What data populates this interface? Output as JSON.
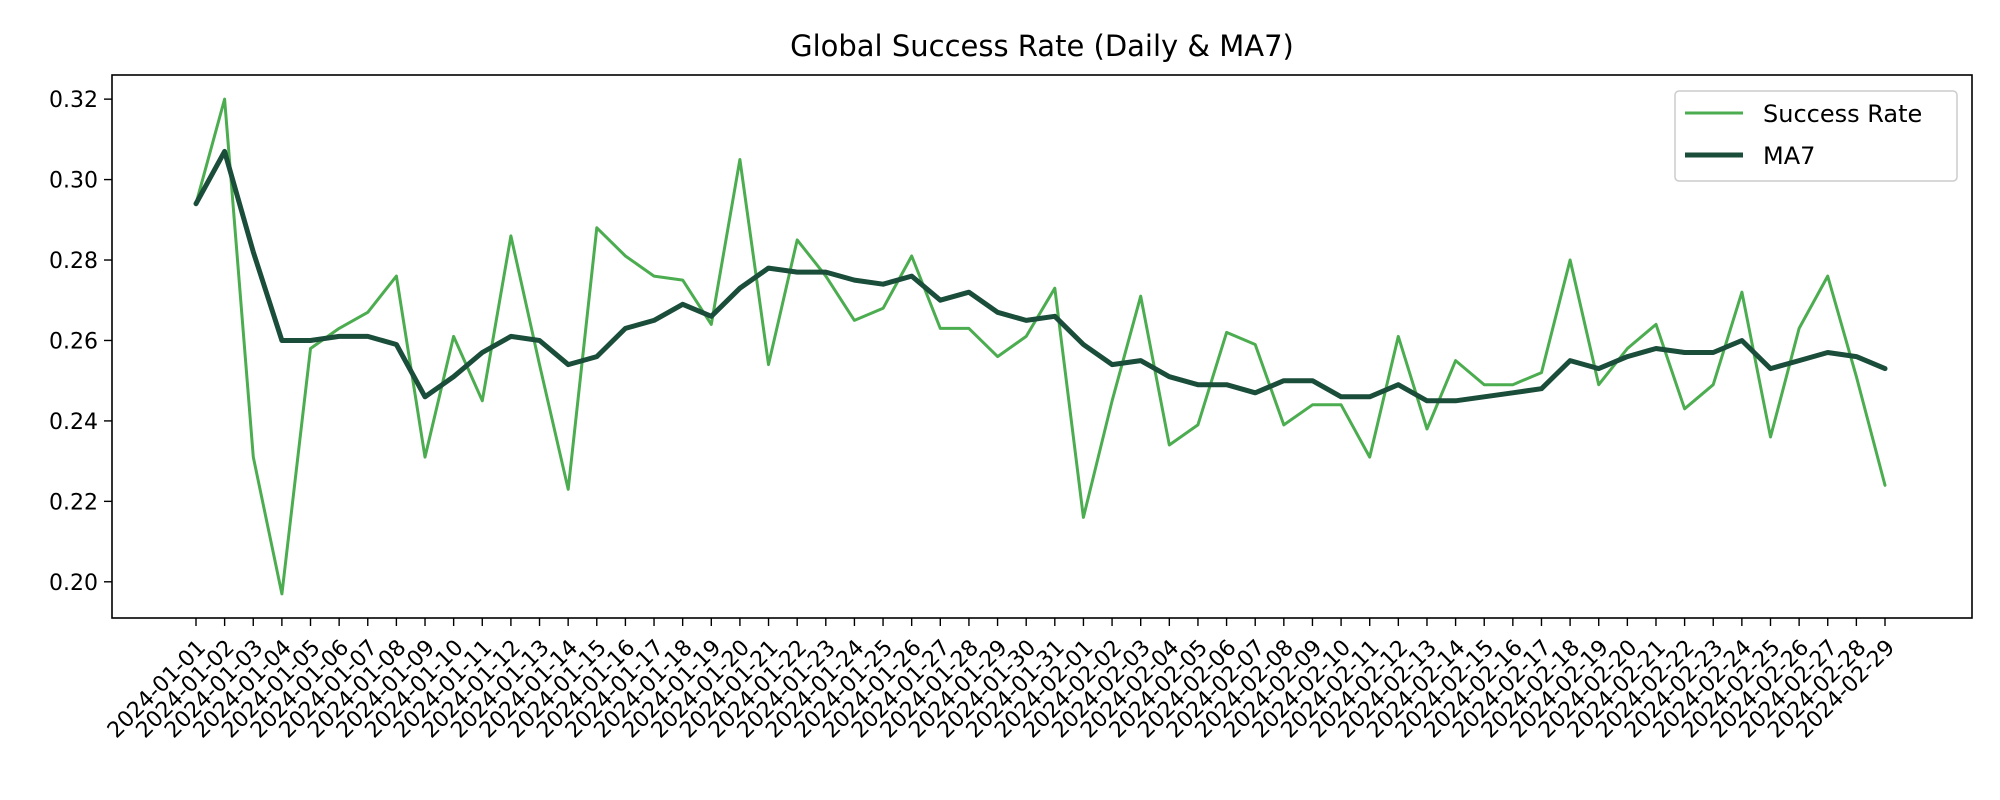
{
  "chart_data": {
    "type": "line",
    "title": "Global Success Rate (Daily & MA7)",
    "xlabel": "",
    "ylabel": "",
    "x": [
      "2024-01-01",
      "2024-01-02",
      "2024-01-03",
      "2024-01-04",
      "2024-01-05",
      "2024-01-06",
      "2024-01-07",
      "2024-01-08",
      "2024-01-09",
      "2024-01-10",
      "2024-01-11",
      "2024-01-12",
      "2024-01-13",
      "2024-01-14",
      "2024-01-15",
      "2024-01-16",
      "2024-01-17",
      "2024-01-18",
      "2024-01-19",
      "2024-01-20",
      "2024-01-21",
      "2024-01-22",
      "2024-01-23",
      "2024-01-24",
      "2024-01-25",
      "2024-01-26",
      "2024-01-27",
      "2024-01-28",
      "2024-01-29",
      "2024-01-30",
      "2024-01-31",
      "2024-02-01",
      "2024-02-02",
      "2024-02-03",
      "2024-02-04",
      "2024-02-05",
      "2024-02-06",
      "2024-02-07",
      "2024-02-08",
      "2024-02-09",
      "2024-02-10",
      "2024-02-11",
      "2024-02-12",
      "2024-02-13",
      "2024-02-14",
      "2024-02-15",
      "2024-02-16",
      "2024-02-17",
      "2024-02-18",
      "2024-02-19",
      "2024-02-20",
      "2024-02-21",
      "2024-02-22",
      "2024-02-23",
      "2024-02-24",
      "2024-02-25",
      "2024-02-26",
      "2024-02-27",
      "2024-02-28",
      "2024-02-29"
    ],
    "series": [
      {
        "name": "Success Rate",
        "color": "#4cad50",
        "values": [
          0.294,
          0.32,
          0.231,
          0.197,
          0.258,
          0.263,
          0.267,
          0.276,
          0.231,
          0.261,
          0.245,
          0.286,
          0.254,
          0.223,
          0.288,
          0.281,
          0.276,
          0.275,
          0.264,
          0.305,
          0.254,
          0.285,
          0.276,
          0.265,
          0.268,
          0.281,
          0.263,
          0.263,
          0.256,
          0.261,
          0.273,
          0.216,
          0.245,
          0.271,
          0.234,
          0.239,
          0.262,
          0.259,
          0.239,
          0.244,
          0.244,
          0.231,
          0.261,
          0.238,
          0.255,
          0.249,
          0.249,
          0.252,
          0.28,
          0.249,
          0.258,
          0.264,
          0.243,
          0.249,
          0.272,
          0.236,
          0.263,
          0.276,
          0.251,
          0.224
        ]
      },
      {
        "name": "MA7",
        "color": "#1a4d3a",
        "values": [
          0.294,
          0.307,
          0.282,
          0.26,
          0.26,
          0.261,
          0.261,
          0.259,
          0.246,
          0.251,
          0.257,
          0.261,
          0.26,
          0.254,
          0.256,
          0.263,
          0.265,
          0.269,
          0.266,
          0.273,
          0.278,
          0.277,
          0.277,
          0.275,
          0.274,
          0.276,
          0.27,
          0.272,
          0.267,
          0.265,
          0.266,
          0.259,
          0.254,
          0.255,
          0.251,
          0.249,
          0.249,
          0.247,
          0.25,
          0.25,
          0.246,
          0.246,
          0.249,
          0.245,
          0.245,
          0.246,
          0.247,
          0.248,
          0.255,
          0.253,
          0.256,
          0.258,
          0.257,
          0.257,
          0.26,
          0.253,
          0.255,
          0.257,
          0.256,
          0.253
        ]
      }
    ],
    "yticks": [
      0.2,
      0.22,
      0.24,
      0.26,
      0.28,
      0.3,
      0.32
    ],
    "ytick_labels": [
      "0.20",
      "0.22",
      "0.24",
      "0.26",
      "0.28",
      "0.30",
      "0.32"
    ],
    "ylim": [
      0.191,
      0.326
    ],
    "grid": false,
    "legend_position": "top-right"
  }
}
